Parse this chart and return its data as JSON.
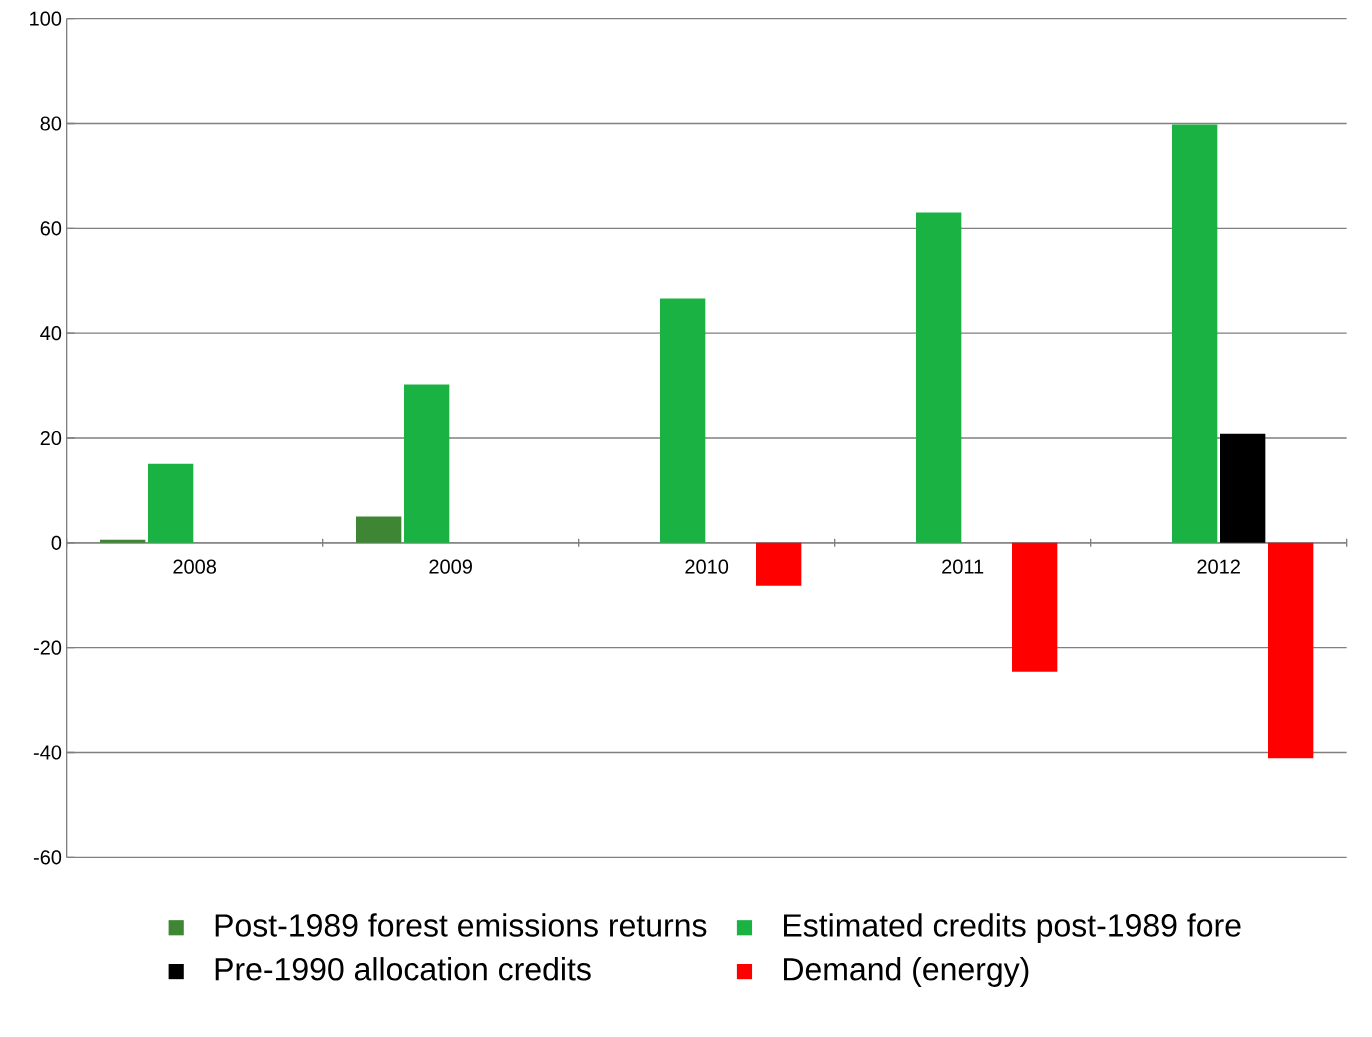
{
  "chart_data": {
    "type": "bar",
    "categories": [
      "2008",
      "2009",
      "2010",
      "2011",
      "2012"
    ],
    "series": [
      {
        "name": "Post-1989 forest emissions returns",
        "color": "#3e8534",
        "values": [
          0.6,
          5,
          null,
          null,
          null
        ]
      },
      {
        "name": "Estimated credits post-1989 fore",
        "color": "#1ab343",
        "values": [
          15.1,
          30.2,
          46.6,
          63,
          79.8
        ]
      },
      {
        "name": "Pre-1990 allocation credits",
        "color": "#000000",
        "values": [
          null,
          null,
          null,
          null,
          20.8
        ]
      },
      {
        "name": "Demand (energy)",
        "color": "#ff0000",
        "values": [
          null,
          null,
          -8.2,
          -24.6,
          -41.1
        ]
      }
    ],
    "ylim": [
      -60,
      100
    ],
    "yticks": [
      -60,
      -40,
      -20,
      0,
      20,
      40,
      60,
      80,
      100
    ],
    "grid": "y",
    "legend": "bottom"
  }
}
